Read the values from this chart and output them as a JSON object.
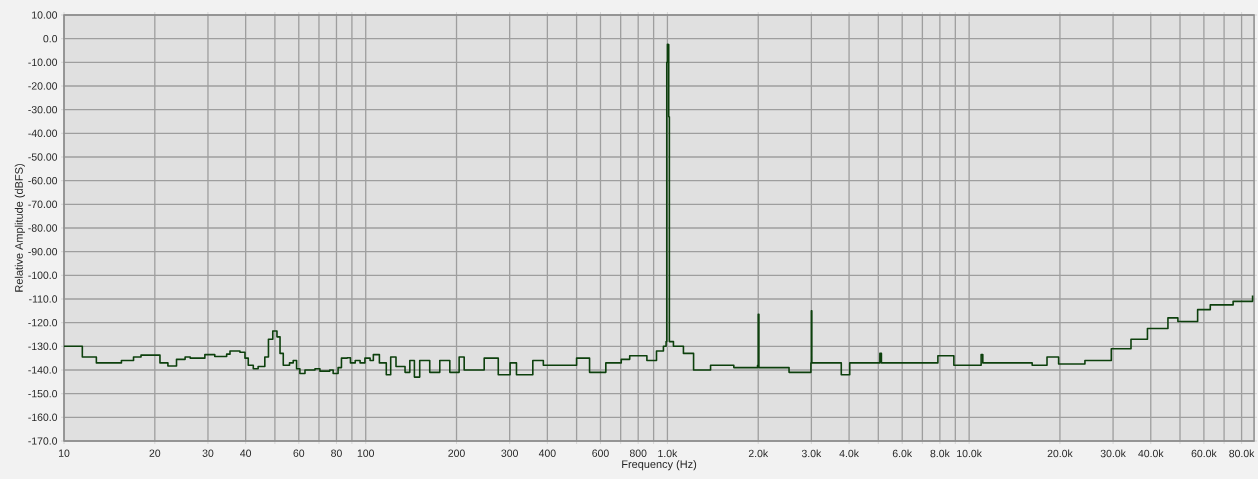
{
  "chart_data": {
    "type": "step",
    "xlabel": "Frequency (Hz)",
    "ylabel": "Relative Amplitude (dBFS)",
    "log": "x",
    "grid": true,
    "xlim": [
      10,
      88000
    ],
    "ylim": [
      -170,
      10
    ],
    "xticks": [
      {
        "value": 10,
        "label": "10"
      },
      {
        "value": 20,
        "label": "20"
      },
      {
        "value": 30,
        "label": "30"
      },
      {
        "value": 40,
        "label": "40"
      },
      {
        "value": 50,
        "label": null
      },
      {
        "value": 60,
        "label": "60"
      },
      {
        "value": 70,
        "label": null
      },
      {
        "value": 80,
        "label": "80"
      },
      {
        "value": 90,
        "label": null
      },
      {
        "value": 100,
        "label": "100"
      },
      {
        "value": 200,
        "label": "200"
      },
      {
        "value": 300,
        "label": "300"
      },
      {
        "value": 400,
        "label": "400"
      },
      {
        "value": 500,
        "label": null
      },
      {
        "value": 600,
        "label": "600"
      },
      {
        "value": 700,
        "label": null
      },
      {
        "value": 800,
        "label": "800"
      },
      {
        "value": 900,
        "label": null
      },
      {
        "value": 1000,
        "label": "1.0k"
      },
      {
        "value": 2000,
        "label": "2.0k"
      },
      {
        "value": 3000,
        "label": "3.0k"
      },
      {
        "value": 4000,
        "label": "4.0k"
      },
      {
        "value": 5000,
        "label": null
      },
      {
        "value": 6000,
        "label": "6.0k"
      },
      {
        "value": 7000,
        "label": null
      },
      {
        "value": 8000,
        "label": "8.0k"
      },
      {
        "value": 9000,
        "label": null
      },
      {
        "value": 10000,
        "label": "10.0k"
      },
      {
        "value": 20000,
        "label": "20.0k"
      },
      {
        "value": 30000,
        "label": "30.0k"
      },
      {
        "value": 40000,
        "label": "40.0k"
      },
      {
        "value": 50000,
        "label": null
      },
      {
        "value": 60000,
        "label": "60.0k"
      },
      {
        "value": 70000,
        "label": null
      },
      {
        "value": 80000,
        "label": "80.0k"
      }
    ],
    "yticks": [
      {
        "value": 10,
        "label": "10.00"
      },
      {
        "value": 0,
        "label": "0.0"
      },
      {
        "value": -10,
        "label": "-10.00"
      },
      {
        "value": -20,
        "label": "-20.00"
      },
      {
        "value": -30,
        "label": "-30.00"
      },
      {
        "value": -40,
        "label": "-40.00"
      },
      {
        "value": -50,
        "label": "-50.00"
      },
      {
        "value": -60,
        "label": "-60.00"
      },
      {
        "value": -70,
        "label": "-70.00"
      },
      {
        "value": -80,
        "label": "-80.00"
      },
      {
        "value": -90,
        "label": "-90.00"
      },
      {
        "value": -100,
        "label": "-100.0"
      },
      {
        "value": -110,
        "label": "-110.0"
      },
      {
        "value": -120,
        "label": "-120.0"
      },
      {
        "value": -130,
        "label": "-130.0"
      },
      {
        "value": -140,
        "label": "-140.0"
      },
      {
        "value": -150,
        "label": "-150.0"
      },
      {
        "value": -160,
        "label": "-160.0"
      },
      {
        "value": -170,
        "label": "-170.0"
      }
    ],
    "series": [
      {
        "color": "#0d400d",
        "x": [
          10,
          11.5,
          12.8,
          15.5,
          17,
          18,
          20.8,
          22.1,
          23.6,
          25.2,
          26.2,
          29.3,
          31.6,
          34.6,
          35.5,
          38.3,
          39.8,
          40.8,
          42.4,
          44,
          46.3,
          47.6,
          49.2,
          50.8,
          52,
          53.3,
          55.9,
          57.5,
          59,
          60.5,
          62.9,
          67.9,
          70.5,
          76,
          78,
          81,
          83.1,
          86.8,
          89,
          92.3,
          95.8,
          99.4,
          103.4,
          106,
          111,
          117,
          121,
          126,
          135,
          140,
          145,
          151,
          163,
          176,
          190,
          204,
          212,
          247,
          275,
          301,
          316,
          358,
          388,
          441,
          500,
          552,
          625,
          703,
          750,
          855,
          920,
          970,
          990,
          995,
          1000,
          1005,
          1010,
          1015,
          1047,
          1130,
          1221,
          1390,
          1660,
          1990,
          2000,
          2010,
          2530,
          2990,
          3000,
          3010,
          3770,
          4020,
          5060,
          5120,
          5870,
          7880,
          8900,
          10960,
          11100,
          12620,
          16180,
          18120,
          19800,
          24200,
          29600,
          34400,
          39000,
          45600,
          49200,
          57200,
          63000,
          75000,
          87000
        ],
        "values": [
          -130,
          -134.5,
          -137,
          -136,
          -134.5,
          -133.7,
          -137,
          -138.3,
          -135.5,
          -134.5,
          -135,
          -133.5,
          -134.3,
          -133.3,
          -132,
          -132.5,
          -135,
          -138,
          -139.5,
          -138.5,
          -134.5,
          -127,
          -123.5,
          -126,
          -133,
          -138,
          -137,
          -136,
          -139.5,
          -141.5,
          -140,
          -139.5,
          -140.5,
          -140,
          -141.5,
          -139,
          -135,
          -134.8,
          -137,
          -136,
          -137,
          -135,
          -136,
          -133.5,
          -137,
          -142,
          -134.5,
          -138.5,
          -141,
          -136,
          -143,
          -136,
          -141,
          -136,
          -141,
          -134.5,
          -140,
          -135,
          -142,
          -137,
          -142,
          -136,
          -138,
          -138,
          -135,
          -141,
          -137,
          -135.5,
          -134,
          -136,
          -132,
          -130,
          -128,
          -10,
          -2.4,
          -2.5,
          -33,
          -128,
          -130,
          -133,
          -140,
          -138,
          -139,
          -138,
          -116.5,
          -139,
          -141,
          -137,
          -115,
          -137,
          -142,
          -137,
          -133,
          -137,
          -137,
          -134,
          -138,
          -133.5,
          -137,
          -137,
          -138,
          -134.5,
          -137.5,
          -136,
          -131,
          -127,
          -122.5,
          -118,
          -119.5,
          -114.5,
          -112.5,
          -111,
          -108.5
        ]
      }
    ]
  }
}
